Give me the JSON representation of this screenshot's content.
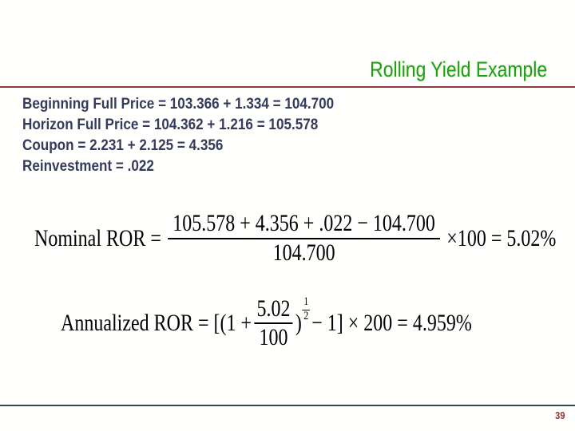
{
  "slide": {
    "title": "Rolling Yield Example",
    "page_number": "39",
    "lines": [
      "Beginning Full Price = 103.366 + 1.334 = 104.700",
      "Horizon Full Price = 104.362 + 1.216 = 105.578",
      "Coupon = 2.231 + 2.125 = 4.356",
      "Reinvestment = .022"
    ],
    "formulas": {
      "nominal": {
        "label": "Nominal ROR =",
        "numerator": "105.578 + 4.356 + .022 − 104.700",
        "denominator": "104.700",
        "suffix": "×100 = 5.02%"
      },
      "annualized": {
        "label": "Annualized ROR = [(1 +",
        "numerator": "5.02",
        "denominator": "100",
        "close_paren": ")",
        "exp_numerator": "1",
        "exp_denominator": "2",
        "suffix": "− 1] × 200 = 4.959%"
      }
    },
    "colors": {
      "title_green": "#1f9b1f",
      "body_navy": "#343b5c",
      "rule_red": "#8e3a3a",
      "rule_bottom": "#3a4554",
      "page_number_red": "#943634"
    }
  }
}
